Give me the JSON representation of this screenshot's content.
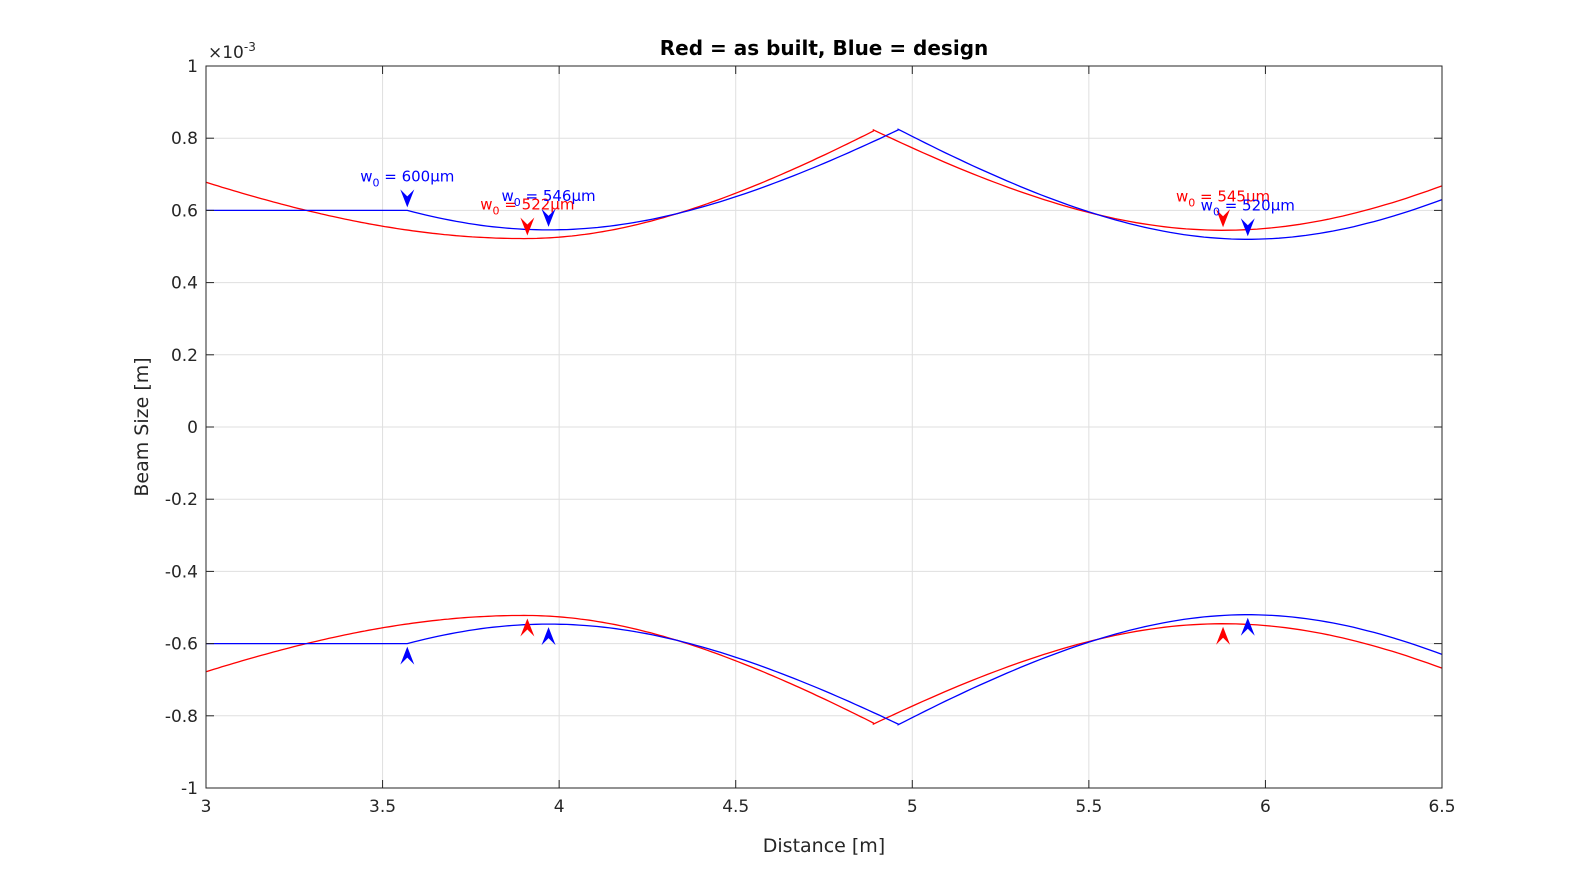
{
  "chart_data": {
    "type": "line",
    "title": "Red = as built, Blue = design",
    "xlabel": "Distance [m]",
    "ylabel": "Beam Size [m]",
    "exponent_label": "×10-3",
    "xlim": [
      3,
      6.5
    ],
    "ylim": [
      -1,
      1
    ],
    "y_scale": 0.001,
    "grid": true,
    "xticks": [
      3,
      3.5,
      4,
      4.5,
      5,
      5.5,
      6,
      6.5
    ],
    "xtick_labels": [
      "3",
      "3.5",
      "4",
      "4.5",
      "5",
      "5.5",
      "6",
      "6.5"
    ],
    "yticks": [
      -1,
      -0.8,
      -0.6,
      -0.4,
      -0.2,
      0,
      0.2,
      0.4,
      0.6,
      0.8,
      1
    ],
    "ytick_labels": [
      "-1",
      "-0.8",
      "-0.6",
      "-0.4",
      "-0.2",
      "0",
      "0.2",
      "0.4",
      "0.6",
      "0.8",
      "1"
    ],
    "series": [
      {
        "color": "#ff0000",
        "segments": [
          {
            "x0": 3.0,
            "x1": 3.9,
            "waist_x": 3.9,
            "w0": 0.522,
            "w_at_x0": 0.678
          },
          {
            "x0": 3.9,
            "x1": 4.89,
            "waist_x": 3.9,
            "w0": 0.522,
            "w_at_x1": 0.82
          },
          {
            "x0": 4.89,
            "x1": 6.5,
            "waist_x": 5.88,
            "w0": 0.545,
            "w_at_x1": 0.668
          }
        ],
        "waists": [
          {
            "x": 3.91,
            "label": "w0 = 522μm",
            "w0": 0.522
          },
          {
            "x": 5.88,
            "label": "w0 = 545μm",
            "w0": 0.545
          }
        ]
      },
      {
        "color": "#0000ff",
        "segments": [
          {
            "x0": 3.0,
            "x1": 3.57,
            "flat": 0.6
          },
          {
            "x0": 3.57,
            "x1": 4.96,
            "waist_x": 3.97,
            "w0": 0.546,
            "w_at_x1": 0.823
          },
          {
            "x0": 4.96,
            "x1": 6.5,
            "waist_x": 5.95,
            "w0": 0.52,
            "w_at_x1": 0.63
          }
        ],
        "waists": [
          {
            "x": 3.57,
            "label": "w0 = 600μm",
            "w0": 0.6
          },
          {
            "x": 3.97,
            "label": "w0 = 546μm",
            "w0": 0.546
          },
          {
            "x": 5.95,
            "label": "w0 = 520μm",
            "w0": 0.52
          }
        ]
      }
    ]
  }
}
